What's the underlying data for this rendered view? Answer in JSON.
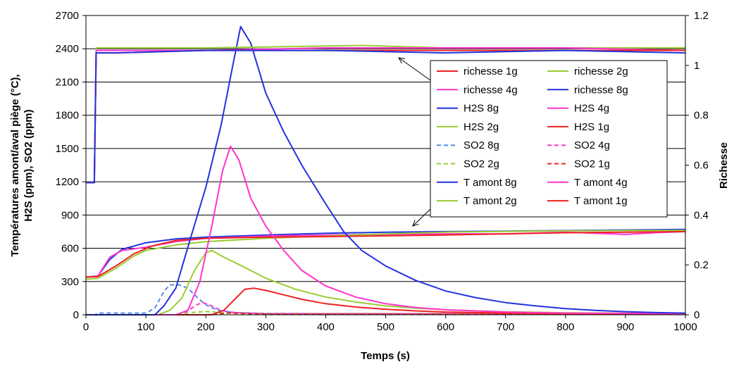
{
  "chart_data": {
    "type": "line",
    "title": "",
    "xlabel": "Temps (s)",
    "ylabel": "Températures amont/aval piège (°C), H2S (ppm), SO2 (ppm)",
    "ylabel_line1": "Températures amont/aval piège (°C),",
    "ylabel_line2": "H2S (ppm), SO2 (ppm)",
    "y2label": "Richesse",
    "xlim": [
      0,
      1000
    ],
    "ylim": [
      0,
      2700
    ],
    "y2lim": [
      0,
      1.2
    ],
    "x_ticks": [
      "0",
      "100",
      "200",
      "300",
      "400",
      "500",
      "600",
      "700",
      "800",
      "900",
      "1000"
    ],
    "y_ticks": [
      "0",
      "300",
      "600",
      "900",
      "1200",
      "1500",
      "1800",
      "2100",
      "2400",
      "2700"
    ],
    "y2_ticks": [
      "0",
      "0.2",
      "0.4",
      "0.6",
      "0.8",
      "1",
      "1.2"
    ],
    "grid": "horizontal",
    "legend_position": "right",
    "series": [
      {
        "name": "richesse 1g",
        "color": "#ee2222",
        "dash": "solid",
        "axis": "y2",
        "points": [
          [
            0,
            0.53
          ],
          [
            14,
            0.53
          ],
          [
            17,
            1.05
          ],
          [
            50,
            1.05
          ],
          [
            200,
            1.06
          ],
          [
            400,
            1.06
          ],
          [
            600,
            1.06
          ],
          [
            800,
            1.06
          ],
          [
            1000,
            1.06
          ]
        ]
      },
      {
        "name": "richesse 2g",
        "color": "#99cc33",
        "dash": "solid",
        "axis": "y2",
        "points": [
          [
            0,
            0.53
          ],
          [
            14,
            0.53
          ],
          [
            17,
            1.07
          ],
          [
            50,
            1.07
          ],
          [
            200,
            1.07
          ],
          [
            460,
            1.08
          ],
          [
            600,
            1.07
          ],
          [
            800,
            1.07
          ],
          [
            1000,
            1.07
          ]
        ]
      },
      {
        "name": "richesse 4g",
        "color": "#ff33cc",
        "dash": "solid",
        "axis": "y2",
        "points": [
          [
            0,
            0.53
          ],
          [
            14,
            0.53
          ],
          [
            17,
            1.06
          ],
          [
            50,
            1.06
          ],
          [
            200,
            1.06
          ],
          [
            400,
            1.07
          ],
          [
            600,
            1.07
          ],
          [
            800,
            1.07
          ],
          [
            1000,
            1.06
          ]
        ]
      },
      {
        "name": "richesse 8g",
        "color": "#2233dd",
        "dash": "solid",
        "axis": "y2",
        "points": [
          [
            0,
            0.53
          ],
          [
            14,
            0.53
          ],
          [
            17,
            1.05
          ],
          [
            50,
            1.05
          ],
          [
            200,
            1.06
          ],
          [
            400,
            1.06
          ],
          [
            600,
            1.05
          ],
          [
            800,
            1.06
          ],
          [
            1000,
            1.05
          ]
        ]
      },
      {
        "name": "H2S 8g",
        "color": "#2233dd",
        "dash": "solid",
        "axis": "y",
        "points": [
          [
            0,
            0
          ],
          [
            115,
            0
          ],
          [
            130,
            80
          ],
          [
            150,
            240
          ],
          [
            175,
            700
          ],
          [
            200,
            1150
          ],
          [
            225,
            1700
          ],
          [
            245,
            2250
          ],
          [
            258,
            2600
          ],
          [
            275,
            2450
          ],
          [
            300,
            2000
          ],
          [
            330,
            1650
          ],
          [
            360,
            1350
          ],
          [
            400,
            1000
          ],
          [
            430,
            750
          ],
          [
            460,
            580
          ],
          [
            500,
            440
          ],
          [
            550,
            310
          ],
          [
            600,
            215
          ],
          [
            650,
            155
          ],
          [
            700,
            110
          ],
          [
            750,
            80
          ],
          [
            800,
            55
          ],
          [
            850,
            40
          ],
          [
            900,
            28
          ],
          [
            950,
            20
          ],
          [
            1000,
            15
          ]
        ]
      },
      {
        "name": "H2S 4g",
        "color": "#ff33cc",
        "dash": "solid",
        "axis": "y",
        "points": [
          [
            0,
            0
          ],
          [
            150,
            0
          ],
          [
            170,
            40
          ],
          [
            190,
            300
          ],
          [
            210,
            800
          ],
          [
            228,
            1300
          ],
          [
            241,
            1520
          ],
          [
            255,
            1400
          ],
          [
            275,
            1050
          ],
          [
            300,
            800
          ],
          [
            330,
            580
          ],
          [
            360,
            400
          ],
          [
            400,
            260
          ],
          [
            450,
            160
          ],
          [
            500,
            100
          ],
          [
            550,
            65
          ],
          [
            600,
            45
          ],
          [
            700,
            25
          ],
          [
            800,
            15
          ],
          [
            1000,
            10
          ]
        ]
      },
      {
        "name": "H2S 2g",
        "color": "#99cc33",
        "dash": "solid",
        "axis": "y",
        "points": [
          [
            0,
            0
          ],
          [
            120,
            0
          ],
          [
            140,
            40
          ],
          [
            160,
            150
          ],
          [
            180,
            390
          ],
          [
            200,
            560
          ],
          [
            210,
            580
          ],
          [
            230,
            520
          ],
          [
            260,
            440
          ],
          [
            300,
            330
          ],
          [
            350,
            230
          ],
          [
            400,
            160
          ],
          [
            450,
            115
          ],
          [
            500,
            80
          ],
          [
            550,
            60
          ],
          [
            600,
            45
          ],
          [
            700,
            28
          ],
          [
            800,
            18
          ],
          [
            900,
            14
          ],
          [
            1000,
            12
          ]
        ]
      },
      {
        "name": "H2S 1g",
        "color": "#ee2222",
        "dash": "solid",
        "axis": "y",
        "points": [
          [
            0,
            0
          ],
          [
            210,
            0
          ],
          [
            230,
            40
          ],
          [
            250,
            150
          ],
          [
            265,
            230
          ],
          [
            280,
            240
          ],
          [
            300,
            220
          ],
          [
            330,
            180
          ],
          [
            360,
            140
          ],
          [
            400,
            100
          ],
          [
            450,
            70
          ],
          [
            500,
            50
          ],
          [
            550,
            35
          ],
          [
            600,
            25
          ],
          [
            700,
            15
          ],
          [
            800,
            10
          ],
          [
            1000,
            8
          ]
        ]
      },
      {
        "name": "SO2 8g",
        "color": "#5588ee",
        "dash": "dashed",
        "axis": "y",
        "points": [
          [
            0,
            0
          ],
          [
            15,
            0
          ],
          [
            20,
            15
          ],
          [
            60,
            15
          ],
          [
            100,
            15
          ],
          [
            115,
            60
          ],
          [
            130,
            210
          ],
          [
            140,
            270
          ],
          [
            155,
            270
          ],
          [
            170,
            240
          ],
          [
            185,
            160
          ],
          [
            200,
            90
          ],
          [
            220,
            40
          ],
          [
            250,
            20
          ],
          [
            300,
            12
          ],
          [
            400,
            10
          ],
          [
            600,
            10
          ],
          [
            1000,
            10
          ]
        ]
      },
      {
        "name": "SO2 4g",
        "color": "#ff33cc",
        "dash": "dashed",
        "axis": "y",
        "points": [
          [
            0,
            0
          ],
          [
            150,
            0
          ],
          [
            165,
            20
          ],
          [
            185,
            90
          ],
          [
            195,
            110
          ],
          [
            210,
            80
          ],
          [
            225,
            40
          ],
          [
            245,
            20
          ],
          [
            300,
            10
          ],
          [
            1000,
            10
          ]
        ]
      },
      {
        "name": "SO2 2g",
        "color": "#99cc33",
        "dash": "dashed",
        "axis": "y",
        "points": [
          [
            0,
            0
          ],
          [
            150,
            0
          ],
          [
            175,
            20
          ],
          [
            200,
            30
          ],
          [
            215,
            25
          ],
          [
            240,
            12
          ],
          [
            300,
            8
          ],
          [
            1000,
            8
          ]
        ]
      },
      {
        "name": "SO2 1g",
        "color": "#ee2222",
        "dash": "dashed",
        "axis": "y",
        "points": [
          [
            0,
            0
          ],
          [
            200,
            0
          ],
          [
            225,
            10
          ],
          [
            240,
            18
          ],
          [
            260,
            12
          ],
          [
            300,
            6
          ],
          [
            1000,
            5
          ]
        ]
      },
      {
        "name": "T amont 8g",
        "color": "#2233dd",
        "dash": "solid",
        "axis": "y",
        "points": [
          [
            0,
            340
          ],
          [
            20,
            350
          ],
          [
            40,
            500
          ],
          [
            60,
            590
          ],
          [
            100,
            650
          ],
          [
            150,
            685
          ],
          [
            200,
            700
          ],
          [
            300,
            720
          ],
          [
            400,
            735
          ],
          [
            500,
            745
          ],
          [
            600,
            750
          ],
          [
            700,
            755
          ],
          [
            800,
            760
          ],
          [
            900,
            765
          ],
          [
            1000,
            770
          ]
        ]
      },
      {
        "name": "T amont 4g",
        "color": "#ff33cc",
        "dash": "solid",
        "axis": "y",
        "points": [
          [
            0,
            340
          ],
          [
            20,
            350
          ],
          [
            40,
            520
          ],
          [
            60,
            580
          ],
          [
            100,
            610
          ],
          [
            150,
            660
          ],
          [
            200,
            690
          ],
          [
            300,
            710
          ],
          [
            400,
            720
          ],
          [
            500,
            725
          ],
          [
            600,
            730
          ],
          [
            700,
            730
          ],
          [
            800,
            745
          ],
          [
            850,
            735
          ],
          [
            900,
            725
          ],
          [
            950,
            740
          ],
          [
            1000,
            750
          ]
        ]
      },
      {
        "name": "T amont 2g",
        "color": "#99cc33",
        "dash": "solid",
        "axis": "y",
        "points": [
          [
            0,
            320
          ],
          [
            20,
            330
          ],
          [
            50,
            420
          ],
          [
            80,
            530
          ],
          [
            100,
            580
          ],
          [
            150,
            630
          ],
          [
            200,
            660
          ],
          [
            300,
            690
          ],
          [
            400,
            710
          ],
          [
            500,
            730
          ],
          [
            600,
            745
          ],
          [
            700,
            752
          ],
          [
            800,
            758
          ],
          [
            900,
            760
          ],
          [
            1000,
            762
          ]
        ]
      },
      {
        "name": "T amont 1g",
        "color": "#ee2222",
        "dash": "solid",
        "axis": "y",
        "points": [
          [
            0,
            340
          ],
          [
            20,
            345
          ],
          [
            50,
            440
          ],
          [
            80,
            550
          ],
          [
            110,
            620
          ],
          [
            150,
            670
          ],
          [
            200,
            690
          ],
          [
            300,
            700
          ],
          [
            400,
            705
          ],
          [
            500,
            712
          ],
          [
            600,
            720
          ],
          [
            700,
            730
          ],
          [
            800,
            740
          ],
          [
            900,
            745
          ],
          [
            1000,
            750
          ]
        ]
      }
    ]
  }
}
